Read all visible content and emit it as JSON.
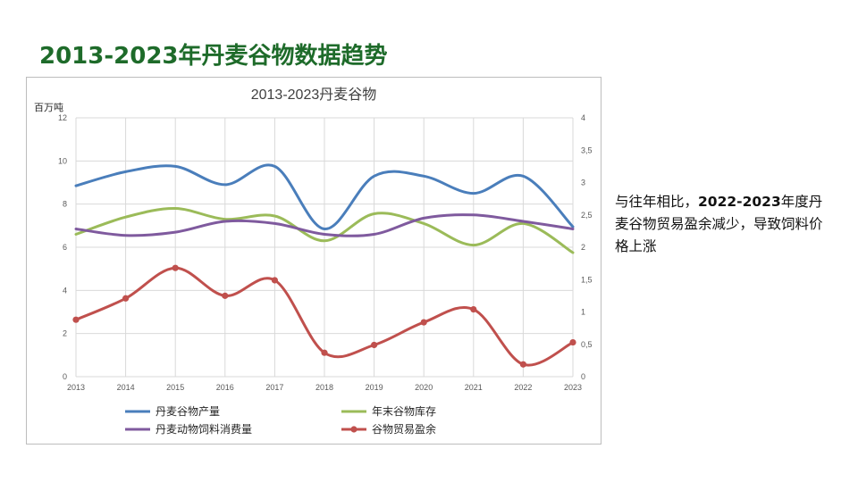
{
  "slide": {
    "title": "2013-2023年丹麦谷物数据趋势",
    "note_prefix": "与往年相比，",
    "note_bold": "2022-2023",
    "note_suffix": "年度丹麦谷物贸易盈余减少，导致饲料价格上涨"
  },
  "chart_data": {
    "type": "line",
    "title": "2013-2023丹麦谷物",
    "ylabel": "百万吨",
    "x": [
      "2013",
      "2014",
      "2015",
      "2016",
      "2017",
      "2018",
      "2019",
      "2020",
      "2021",
      "2022",
      "2023"
    ],
    "y_left": {
      "ylim": [
        0,
        12
      ],
      "ticks": [
        "0",
        "2",
        "4",
        "6",
        "8",
        "10",
        "12"
      ]
    },
    "y_right": {
      "ylim": [
        0,
        4
      ],
      "ticks": [
        "0",
        "0,5",
        "1",
        "1,5",
        "2",
        "2,5",
        "3",
        "3,5",
        "4"
      ]
    },
    "grid": true,
    "legend_position": "bottom",
    "series": [
      {
        "name": "丹麦谷物产量",
        "axis": "left",
        "color": "#4a7ebb",
        "markers": false,
        "values": [
          8.85,
          9.5,
          9.75,
          8.9,
          9.75,
          6.85,
          9.3,
          9.3,
          8.5,
          9.3,
          6.95
        ]
      },
      {
        "name": "年末谷物库存",
        "axis": "left",
        "color": "#9bbb59",
        "markers": false,
        "values": [
          6.6,
          7.4,
          7.8,
          7.3,
          7.45,
          6.3,
          7.55,
          7.1,
          6.1,
          7.1,
          5.75
        ]
      },
      {
        "name": "丹麦动物饲料消费量",
        "axis": "left",
        "color": "#7f5a9e",
        "markers": false,
        "values": [
          6.85,
          6.55,
          6.7,
          7.2,
          7.1,
          6.6,
          6.6,
          7.35,
          7.5,
          7.2,
          6.85
        ]
      },
      {
        "name": "谷物贸易盈余",
        "axis": "right",
        "color": "#c0504d",
        "markers": true,
        "values": [
          0.88,
          1.21,
          1.68,
          1.25,
          1.49,
          0.37,
          0.49,
          0.84,
          1.04,
          0.19,
          0.53
        ]
      }
    ]
  }
}
